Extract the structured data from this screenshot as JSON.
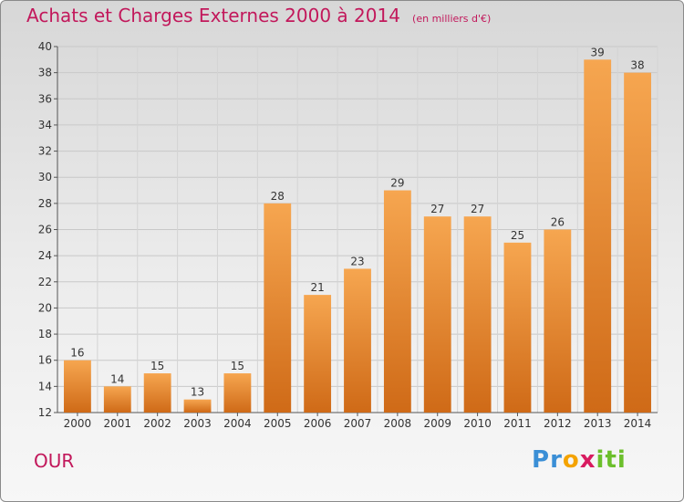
{
  "title": "Achats et Charges Externes 2000 à 2014",
  "unit_note": "(en milliers d'€)",
  "commune": "OUR",
  "logo": {
    "letters": [
      "P",
      "r",
      "o",
      "x",
      "i",
      "t",
      "i"
    ],
    "colors": [
      "#3b8fd6",
      "#3b8fd6",
      "#f4a300",
      "#d81b60",
      "#6cbf2c",
      "#6cbf2c",
      "#6cbf2c"
    ]
  },
  "colors": {
    "title": "#c2185b",
    "bar_light": "#f6a650",
    "bar_dark": "#cf6a17"
  },
  "chart_data": {
    "type": "bar",
    "categories": [
      "2000",
      "2001",
      "2002",
      "2003",
      "2004",
      "2005",
      "2006",
      "2007",
      "2008",
      "2009",
      "2010",
      "2011",
      "2012",
      "2013",
      "2014"
    ],
    "values": [
      16,
      14,
      15,
      13,
      15,
      28,
      21,
      23,
      29,
      27,
      27,
      25,
      26,
      39,
      38
    ],
    "ylim": [
      12,
      40
    ],
    "yticks": [
      12,
      14,
      16,
      18,
      20,
      22,
      24,
      26,
      28,
      30,
      32,
      34,
      36,
      38,
      40
    ],
    "grid": true,
    "data_labels": true
  }
}
